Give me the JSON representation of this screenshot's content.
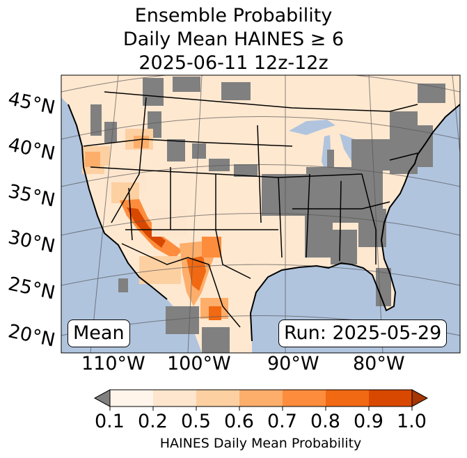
{
  "title": {
    "line1": "Ensemble Probability",
    "line2": "Daily Mean HAINES ≥ 6",
    "line3": "2025-06-11 12z-12z"
  },
  "labels": {
    "mean": "Mean",
    "run": "Run: 2025-05-29"
  },
  "latitude_labels": [
    "45°N",
    "40°N",
    "35°N",
    "30°N",
    "25°N",
    "20°N"
  ],
  "longitude_labels": [
    "110°W",
    "100°W",
    "90°W",
    "80°W"
  ],
  "colorbar": {
    "ticks": [
      "0.1",
      "0.2",
      "0.5",
      "0.6",
      "0.7",
      "0.8",
      "0.9",
      "1.0"
    ],
    "label": "HAINES Daily Mean Probability",
    "under_color": "#808080",
    "over_color": "#a63603",
    "colors": [
      "#fff5eb",
      "#fee6ce",
      "#fdd0a2",
      "#fdae6b",
      "#fd8d3c",
      "#f16913",
      "#d94801"
    ]
  },
  "colors": {
    "ocean": "#b0c4de",
    "low": "#808080"
  }
}
